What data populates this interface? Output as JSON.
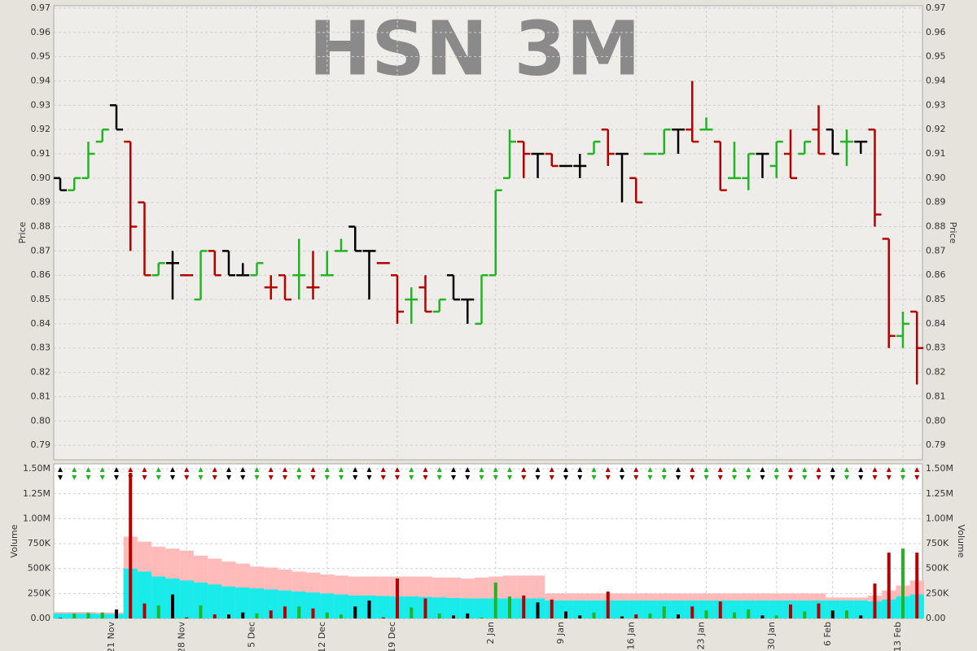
{
  "chart_data": [
    {
      "type": "ohlc",
      "title": "HSN 3M",
      "ylabel": "Price",
      "ylim": [
        0.784,
        0.971
      ],
      "yticks": [
        0.79,
        {
          "value": 0.8,
          "label": "0.80"
        },
        0.81,
        0.82,
        0.83,
        0.84,
        0.85,
        0.86,
        0.87,
        0.88,
        0.89,
        {
          "value": 0.9,
          "label": "0.90"
        },
        0.91,
        0.92,
        0.93,
        0.94,
        0.95,
        0.96,
        0.97
      ],
      "grid": true,
      "open": [
        0.9,
        0.895,
        0.9,
        0.915,
        0.93,
        0.915,
        0.89,
        0.86,
        0.865,
        0.86,
        0.85,
        0.87,
        0.87,
        0.86,
        0.86,
        0.855,
        0.86,
        0.86,
        0.855,
        0.86,
        0.87,
        0.88,
        0.87,
        0.865,
        0.86,
        0.85,
        0.855,
        0.845,
        0.86,
        0.85,
        0.84,
        0.86,
        0.9,
        0.915,
        0.91,
        0.91,
        0.905,
        0.905,
        0.91,
        0.92,
        0.91,
        0.9,
        0.91,
        0.91,
        0.92,
        0.92,
        0.92,
        0.915,
        0.9,
        0.9,
        0.91,
        0.905,
        0.91,
        0.91,
        0.92,
        0.92,
        0.915,
        0.915,
        0.92,
        0.875,
        0.835,
        0.845
      ],
      "high": [
        0.9,
        0.9,
        0.915,
        0.92,
        0.93,
        0.915,
        0.89,
        0.865,
        0.87,
        0.86,
        0.87,
        0.87,
        0.87,
        0.865,
        0.865,
        0.86,
        0.86,
        0.875,
        0.87,
        0.87,
        0.875,
        0.88,
        0.87,
        0.865,
        0.86,
        0.855,
        0.86,
        0.85,
        0.86,
        0.85,
        0.86,
        0.895,
        0.92,
        0.915,
        0.91,
        0.91,
        0.905,
        0.91,
        0.915,
        0.92,
        0.91,
        0.9,
        0.91,
        0.92,
        0.92,
        0.94,
        0.925,
        0.915,
        0.915,
        0.91,
        0.91,
        0.915,
        0.92,
        0.915,
        0.93,
        0.92,
        0.92,
        0.915,
        0.92,
        0.875,
        0.845,
        0.845
      ],
      "low": [
        0.895,
        0.895,
        0.9,
        0.915,
        0.92,
        0.87,
        0.86,
        0.86,
        0.85,
        0.86,
        0.85,
        0.86,
        0.86,
        0.86,
        0.86,
        0.85,
        0.85,
        0.85,
        0.85,
        0.86,
        0.87,
        0.87,
        0.85,
        0.865,
        0.84,
        0.84,
        0.845,
        0.845,
        0.85,
        0.84,
        0.84,
        0.86,
        0.9,
        0.9,
        0.9,
        0.905,
        0.905,
        0.9,
        0.91,
        0.905,
        0.89,
        0.89,
        0.91,
        0.91,
        0.91,
        0.915,
        0.92,
        0.895,
        0.9,
        0.895,
        0.9,
        0.9,
        0.9,
        0.91,
        0.91,
        0.91,
        0.905,
        0.91,
        0.88,
        0.83,
        0.83,
        0.815
      ],
      "close": [
        0.895,
        0.9,
        0.91,
        0.92,
        0.92,
        0.88,
        0.86,
        0.865,
        0.865,
        0.86,
        0.87,
        0.86,
        0.86,
        0.86,
        0.865,
        0.855,
        0.85,
        0.86,
        0.855,
        0.86,
        0.87,
        0.87,
        0.87,
        0.865,
        0.845,
        0.85,
        0.845,
        0.85,
        0.85,
        0.85,
        0.86,
        0.895,
        0.915,
        0.91,
        0.91,
        0.905,
        0.905,
        0.905,
        0.915,
        0.91,
        0.91,
        0.89,
        0.91,
        0.92,
        0.92,
        0.915,
        0.92,
        0.895,
        0.9,
        0.91,
        0.91,
        0.915,
        0.9,
        0.915,
        0.91,
        0.91,
        0.915,
        0.915,
        0.885,
        0.835,
        0.84,
        0.83
      ],
      "colors": [
        "#000000",
        "#22b422",
        "#22b422",
        "#22b422",
        "#000000",
        "#b40000",
        "#b40000",
        "#22b422",
        "#000000",
        "#b40000",
        "#22b422",
        "#b40000",
        "#000000",
        "#000000",
        "#22b422",
        "#b40000",
        "#b40000",
        "#22b422",
        "#b40000",
        "#22b422",
        "#22b422",
        "#000000",
        "#000000",
        "#b40000",
        "#b40000",
        "#22b422",
        "#b40000",
        "#22b422",
        "#000000",
        "#000000",
        "#22b422",
        "#22b422",
        "#22b422",
        "#b40000",
        "#000000",
        "#b40000",
        "#000000",
        "#000000",
        "#22b422",
        "#b40000",
        "#000000",
        "#b40000",
        "#22b422",
        "#22b422",
        "#000000",
        "#b40000",
        "#22b422",
        "#b40000",
        "#22b422",
        "#22b422",
        "#000000",
        "#22b422",
        "#b40000",
        "#22b422",
        "#b40000",
        "#000000",
        "#22b422",
        "#000000",
        "#b40000",
        "#b40000",
        "#22b422",
        "#b40000"
      ]
    },
    {
      "type": "bar",
      "ylabel": "Volume",
      "ylim": [
        0,
        1550000
      ],
      "yticks": [
        {
          "value": 0,
          "label": "0.00"
        },
        {
          "value": 250000,
          "label": "250K"
        },
        {
          "value": 500000,
          "label": "500K"
        },
        {
          "value": 750000,
          "label": "750K"
        },
        {
          "value": 1000000,
          "label": "1.00M"
        },
        {
          "value": 1250000,
          "label": "1.25M"
        },
        {
          "value": 1500000,
          "label": "1.50M"
        }
      ],
      "grid": true,
      "categories": [
        null,
        null,
        null,
        null,
        "21 Nov",
        null,
        null,
        null,
        null,
        "28 Nov",
        null,
        null,
        null,
        null,
        "5 Dec",
        null,
        null,
        null,
        null,
        "12 Dec",
        null,
        null,
        null,
        null,
        "19 Dec",
        null,
        null,
        null,
        null,
        null,
        null,
        "2 Jan",
        null,
        null,
        null,
        null,
        "9 Jan",
        null,
        null,
        null,
        null,
        "16 Jan",
        null,
        null,
        null,
        null,
        "23 Jan",
        null,
        null,
        null,
        null,
        "30 Jan",
        null,
        null,
        null,
        "6 Feb",
        null,
        null,
        null,
        null,
        "13 Feb",
        null
      ],
      "values": [
        5000,
        50000,
        55000,
        60000,
        90000,
        1460000,
        150000,
        130000,
        240000,
        10000,
        130000,
        40000,
        40000,
        60000,
        50000,
        80000,
        120000,
        120000,
        100000,
        60000,
        40000,
        120000,
        180000,
        10000,
        400000,
        110000,
        200000,
        50000,
        30000,
        50000,
        10000,
        360000,
        220000,
        230000,
        160000,
        190000,
        70000,
        30000,
        60000,
        270000,
        20000,
        40000,
        50000,
        120000,
        40000,
        120000,
        80000,
        170000,
        60000,
        90000,
        30000,
        30000,
        140000,
        70000,
        150000,
        80000,
        80000,
        30000,
        350000,
        660000,
        700000,
        660000
      ],
      "bands": [
        {
          "color": "#ffb3b3",
          "values": [
            65000,
            65000,
            65000,
            60000,
            60000,
            820000,
            770000,
            720000,
            700000,
            680000,
            630000,
            600000,
            570000,
            550000,
            520000,
            510000,
            490000,
            470000,
            460000,
            440000,
            430000,
            420000,
            420000,
            420000,
            420000,
            420000,
            420000,
            410000,
            410000,
            400000,
            410000,
            420000,
            430000,
            430000,
            430000,
            250000,
            250000,
            250000,
            250000,
            250000,
            250000,
            250000,
            250000,
            250000,
            250000,
            250000,
            250000,
            250000,
            250000,
            250000,
            250000,
            250000,
            250000,
            250000,
            250000,
            210000,
            210000,
            210000,
            230000,
            280000,
            330000,
            380000
          ]
        },
        {
          "color": "#00f0f0",
          "values": [
            50000,
            50000,
            50000,
            45000,
            45000,
            500000,
            470000,
            420000,
            400000,
            380000,
            360000,
            340000,
            320000,
            310000,
            300000,
            290000,
            280000,
            270000,
            260000,
            250000,
            240000,
            230000,
            230000,
            225000,
            220000,
            220000,
            215000,
            210000,
            205000,
            200000,
            200000,
            200000,
            200000,
            200000,
            200000,
            180000,
            180000,
            180000,
            180000,
            180000,
            180000,
            180000,
            180000,
            180000,
            180000,
            180000,
            180000,
            180000,
            180000,
            180000,
            180000,
            180000,
            180000,
            180000,
            180000,
            180000,
            180000,
            180000,
            170000,
            190000,
            220000,
            240000
          ]
        }
      ]
    }
  ]
}
